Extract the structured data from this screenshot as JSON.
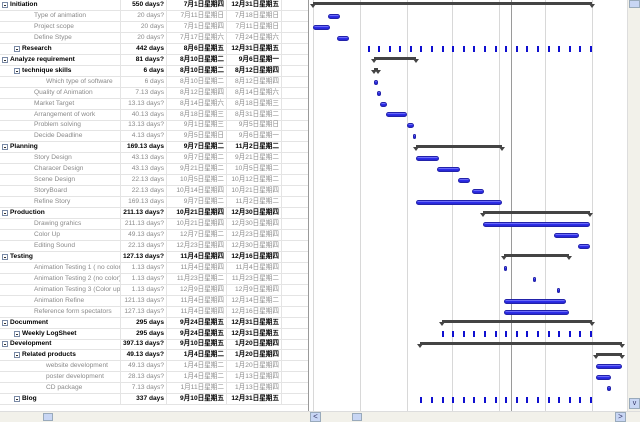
{
  "tasks": [
    {
      "name": "Initiation",
      "duration": "550 days?",
      "start": "7月1日星期四",
      "finish": "12月31日星期五",
      "level": 0,
      "kind": "summary"
    },
    {
      "name": "Type of animation",
      "duration": "20 days?",
      "start": "7月11日星期日",
      "finish": "7月18日星期日",
      "level": 1,
      "kind": "task"
    },
    {
      "name": "Project scope",
      "duration": "20 days",
      "start": "7月1日星期四",
      "finish": "7月11日星期日",
      "level": 1,
      "kind": "task"
    },
    {
      "name": "Define Stype",
      "duration": "20 days?",
      "start": "7月17日星期六",
      "finish": "7月24日星期六",
      "level": 1,
      "kind": "task"
    },
    {
      "name": "Research",
      "duration": "442 days",
      "start": "8月6日星期五",
      "finish": "12月31日星期五",
      "level": 1,
      "kind": "recurring"
    },
    {
      "name": "Analyze requirement",
      "duration": "81 days?",
      "start": "8月10日星期二",
      "finish": "9月6日星期一",
      "level": 0,
      "kind": "summary"
    },
    {
      "name": "technique skills",
      "duration": "6 days",
      "start": "8月10日星期二",
      "finish": "8月12日星期四",
      "level": 1,
      "kind": "summary"
    },
    {
      "name": "Which type of software",
      "duration": "6 days",
      "start": "8月10日星期二",
      "finish": "8月12日星期四",
      "level": 2,
      "kind": "task"
    },
    {
      "name": "Quality of Animation",
      "duration": "7.13 days",
      "start": "8月12日星期四",
      "finish": "8月14日星期六",
      "level": 1,
      "kind": "task"
    },
    {
      "name": "Market Target",
      "duration": "13.13 days?",
      "start": "8月14日星期六",
      "finish": "8月18日星期三",
      "level": 1,
      "kind": "task"
    },
    {
      "name": "Arrangement of work",
      "duration": "40.13 days",
      "start": "8月18日星期三",
      "finish": "8月31日星期二",
      "level": 1,
      "kind": "task"
    },
    {
      "name": "Problem solving",
      "duration": "13.13 days?",
      "start": "9月1日星期三",
      "finish": "9月5日星期日",
      "level": 1,
      "kind": "task"
    },
    {
      "name": "Decide Deadline",
      "duration": "4.13 days?",
      "start": "9月5日星期日",
      "finish": "9月6日星期一",
      "level": 1,
      "kind": "task"
    },
    {
      "name": "Planning",
      "duration": "169.13 days",
      "start": "9月7日星期二",
      "finish": "11月2日星期二",
      "level": 0,
      "kind": "summary"
    },
    {
      "name": "Story Design",
      "duration": "43.13 days",
      "start": "9月7日星期二",
      "finish": "9月21日星期二",
      "level": 1,
      "kind": "task"
    },
    {
      "name": "Characer Design",
      "duration": "43.13 days",
      "start": "9月21日星期二",
      "finish": "10月5日星期二",
      "level": 1,
      "kind": "task"
    },
    {
      "name": "Scene Design",
      "duration": "22.13 days",
      "start": "10月5日星期二",
      "finish": "10月12日星期二",
      "level": 1,
      "kind": "task"
    },
    {
      "name": "StoryBoard",
      "duration": "22.13 days",
      "start": "10月14日星期四",
      "finish": "10月21日星期四",
      "level": 1,
      "kind": "task"
    },
    {
      "name": "Refine Story",
      "duration": "169.13 days",
      "start": "9月7日星期二",
      "finish": "11月2日星期二",
      "level": 1,
      "kind": "task"
    },
    {
      "name": "Production",
      "duration": "211.13 days?",
      "start": "10月21日星期四",
      "finish": "12月30日星期四",
      "level": 0,
      "kind": "summary"
    },
    {
      "name": "Drawing grahics",
      "duration": "211.13 days?",
      "start": "10月21日星期四",
      "finish": "12月30日星期四",
      "level": 1,
      "kind": "task"
    },
    {
      "name": "Color Up",
      "duration": "49.13 days?",
      "start": "12月7日星期二",
      "finish": "12月23日星期四",
      "level": 1,
      "kind": "task"
    },
    {
      "name": "Editing Sound",
      "duration": "22.13 days?",
      "start": "12月23日星期四",
      "finish": "12月30日星期四",
      "level": 1,
      "kind": "task"
    },
    {
      "name": "Testing",
      "duration": "127.13 days?",
      "start": "11月4日星期四",
      "finish": "12月16日星期四",
      "level": 0,
      "kind": "summary"
    },
    {
      "name": "Animation Testing 1 ( no color)",
      "duration": "1.13 days?",
      "start": "11月4日星期四",
      "finish": "11月4日星期四",
      "level": 1,
      "kind": "task"
    },
    {
      "name": "Animation Testing 2 (no color)",
      "duration": "1.13 days?",
      "start": "11月23日星期二",
      "finish": "11月23日星期二",
      "level": 1,
      "kind": "task"
    },
    {
      "name": "Animation Testing 3 (Color up)",
      "duration": "1.13 days?",
      "start": "12月9日星期四",
      "finish": "12月9日星期四",
      "level": 1,
      "kind": "task"
    },
    {
      "name": "Animation Refine",
      "duration": "121.13 days?",
      "start": "11月4日星期四",
      "finish": "12月14日星期二",
      "level": 1,
      "kind": "task"
    },
    {
      "name": "Reference form spectators",
      "duration": "127.13 days?",
      "start": "11月4日星期四",
      "finish": "12月16日星期四",
      "level": 1,
      "kind": "task"
    },
    {
      "name": "Documment",
      "duration": "295 days",
      "start": "9月24日星期五",
      "finish": "12月31日星期五",
      "level": 0,
      "kind": "summary"
    },
    {
      "name": "Weekly LogSheet",
      "duration": "295 days",
      "start": "9月24日星期五",
      "finish": "12月31日星期五",
      "level": 1,
      "kind": "recurring"
    },
    {
      "name": "Development",
      "duration": "397.13 days?",
      "start": "9月10日星期五",
      "finish": "1月20日星期四",
      "level": 0,
      "kind": "summary"
    },
    {
      "name": "Related products",
      "duration": "49.13 days?",
      "start": "1月4日星期二",
      "finish": "1月20日星期四",
      "level": 1,
      "kind": "summary"
    },
    {
      "name": "website development",
      "duration": "49.13 days?",
      "start": "1月4日星期二",
      "finish": "1月20日星期四",
      "level": 2,
      "kind": "task"
    },
    {
      "name": "poster development",
      "duration": "28.13 days?",
      "start": "1月4日星期二",
      "finish": "1月13日星期四",
      "level": 2,
      "kind": "task"
    },
    {
      "name": "CD package",
      "duration": "7.13 days?",
      "start": "1月11日星期二",
      "finish": "1月13日星期四",
      "level": 2,
      "kind": "task"
    },
    {
      "name": "Blog",
      "duration": "337 days",
      "start": "9月10日星期五",
      "finish": "12月31日星期五",
      "level": 1,
      "kind": "recurring"
    }
  ],
  "colors": {
    "task_bar": "#2222dd",
    "summary_bar": "#444444",
    "recurring_tick": "#1010d0"
  },
  "scrollbars": {
    "left_arrow": "<",
    "right_arrow": ">",
    "down_arrow": "v"
  }
}
